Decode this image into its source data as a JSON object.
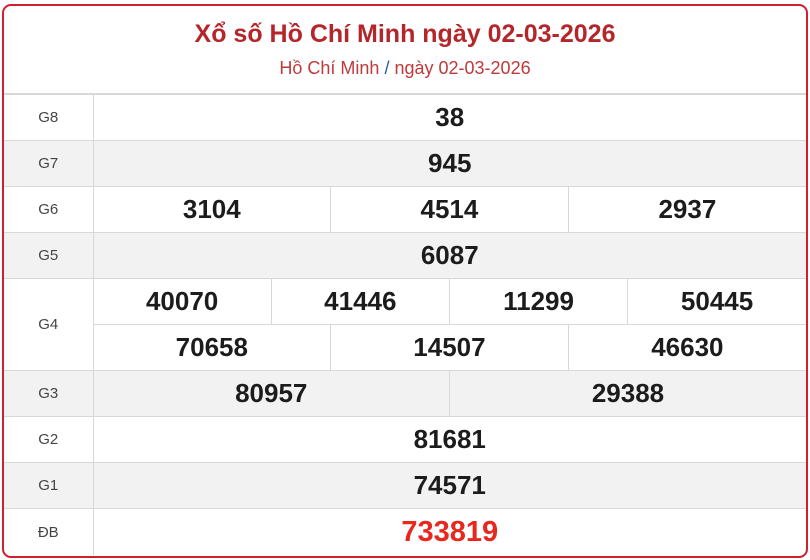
{
  "header": {
    "title": "Xổ số Hồ Chí Minh ngày 02-03-2026",
    "breadcrumb_location": "Hồ Chí Minh",
    "breadcrumb_separator": "/",
    "breadcrumb_date": "ngày 02-03-2026"
  },
  "colors": {
    "accent": "#b5262b",
    "special_prize": "#e8281e",
    "border": "#d0202e"
  },
  "prizes": {
    "g8": {
      "label": "G8",
      "numbers": [
        "38"
      ]
    },
    "g7": {
      "label": "G7",
      "numbers": [
        "945"
      ]
    },
    "g6": {
      "label": "G6",
      "numbers": [
        "3104",
        "4514",
        "2937"
      ]
    },
    "g5": {
      "label": "G5",
      "numbers": [
        "6087"
      ]
    },
    "g4": {
      "label": "G4",
      "numbers": [
        "40070",
        "41446",
        "11299",
        "50445",
        "70658",
        "14507",
        "46630"
      ]
    },
    "g3": {
      "label": "G3",
      "numbers": [
        "80957",
        "29388"
      ]
    },
    "g2": {
      "label": "G2",
      "numbers": [
        "81681"
      ]
    },
    "g1": {
      "label": "G1",
      "numbers": [
        "74571"
      ]
    },
    "db": {
      "label": "ĐB",
      "numbers": [
        "733819"
      ]
    }
  }
}
